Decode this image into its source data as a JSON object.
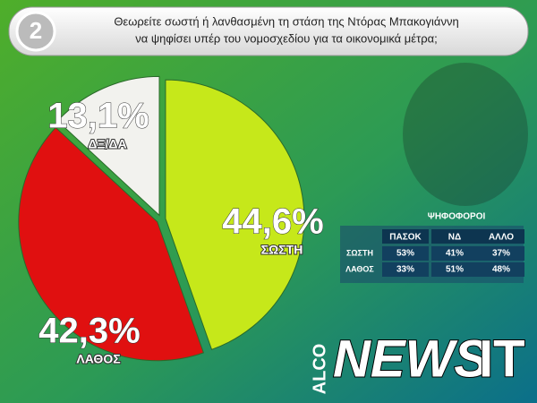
{
  "badge": "2",
  "header": {
    "lines": [
      "Θεωρείτε σωστή ή λανθασμένη τη στάση της Ντόρας Μπακογιάννη",
      "να ψηφίσει υπέρ του νομοσχεδίου για τα οικονομικά μέτρα;"
    ]
  },
  "chart_data": {
    "type": "pie",
    "categories": [
      "ΣΩΣΤΗ",
      "ΛΑΘΟΣ",
      "ΔΞ/ΔΑ"
    ],
    "values": [
      44.6,
      42.3,
      13.1
    ],
    "value_labels": [
      "44,6%",
      "42,3%",
      "13,1%"
    ],
    "colors": [
      "#c6e81a",
      "#e01010",
      "#f2f2ee"
    ]
  },
  "table": {
    "title": "ΨΗΦΟΦΟΡΟΙ",
    "columns": [
      "ΠΑΣΟΚ",
      "ΝΔ",
      "ΑΛΛΟ"
    ],
    "rows": [
      [
        "ΣΩΣΤΗ",
        "53%",
        "41%",
        "37%"
      ],
      [
        "ΛΑΘΟΣ",
        "33%",
        "51%",
        "48%"
      ]
    ]
  },
  "logo": {
    "prefix": "ALCO",
    "name": "NEWS",
    "suffix": "IT"
  }
}
